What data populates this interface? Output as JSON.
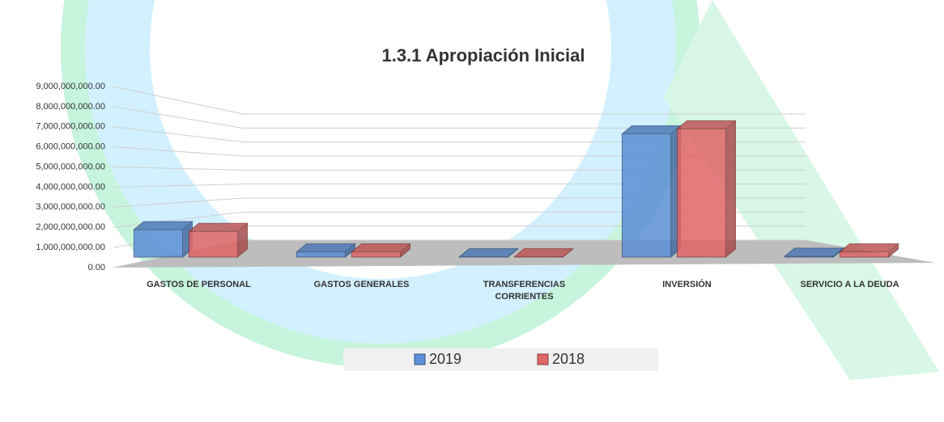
{
  "chart_data": {
    "type": "bar3d",
    "title": "1.3.1 Apropiación Inicial",
    "categories": [
      "GASTOS DE PERSONAL",
      "GASTOS GENERALES",
      "TRANSFERENCIAS CORRIENTES",
      "INVERSIÓN",
      "SERVICIO A LA DEUDA"
    ],
    "series": [
      {
        "name": "2019",
        "color": "#5b8fd6",
        "values": [
          1600000000,
          300000000,
          20000000,
          7200000000,
          50000000
        ]
      },
      {
        "name": "2018",
        "color": "#e06666",
        "values": [
          1500000000,
          300000000,
          20000000,
          7500000000,
          300000000
        ]
      }
    ],
    "ylim": [
      0,
      9000000000
    ],
    "yticks": [
      {
        "value": 0,
        "label": "0.00"
      },
      {
        "value": 1000000000,
        "label": "1,000,000,000.00"
      },
      {
        "value": 2000000000,
        "label": "2,000,000,000.00"
      },
      {
        "value": 3000000000,
        "label": "3,000,000,000.00"
      },
      {
        "value": 4000000000,
        "label": "4,000,000,000.00"
      },
      {
        "value": 5000000000,
        "label": "5,000,000,000.00"
      },
      {
        "value": 6000000000,
        "label": "6,000,000,000.00"
      },
      {
        "value": 7000000000,
        "label": "7,000,000,000.00"
      },
      {
        "value": 8000000000,
        "label": "8,000,000,000.00"
      },
      {
        "value": 9000000000,
        "label": "9,000,000,000.00"
      }
    ],
    "grid": true
  }
}
